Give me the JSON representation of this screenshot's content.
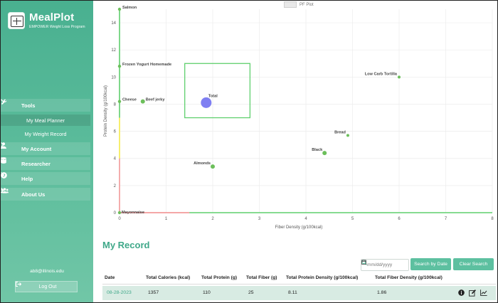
{
  "app": {
    "title": "MealPlot",
    "subtitle": "EMPOWER Weight Loss Program"
  },
  "sidebar": {
    "tools": {
      "label": "Tools",
      "icon": "wrench-icon"
    },
    "tools_items": [
      {
        "label": "My Meal Planner",
        "active": true
      },
      {
        "label": "My Weight Record",
        "active": false
      }
    ],
    "items": [
      {
        "label": "My Account",
        "icon": "user-icon"
      },
      {
        "label": "Researcher",
        "icon": "database-icon"
      },
      {
        "label": "Help",
        "icon": "question-icon"
      },
      {
        "label": "About Us",
        "icon": "users-icon"
      }
    ],
    "email": "ab8@illinois.edu",
    "logout_label": "Log Out"
  },
  "chart_data": {
    "type": "scatter",
    "title": "",
    "legend": [
      "PF Plot"
    ],
    "xlabel": "Fiber Density (g/100kcal)",
    "ylabel": "Protein Density (g/100kcal)",
    "xlim": [
      0,
      8
    ],
    "ylim": [
      0,
      15
    ],
    "xticks": [
      0,
      1,
      2,
      3,
      4,
      5,
      6,
      7,
      8
    ],
    "yticks": [
      0,
      2,
      4,
      6,
      8,
      10,
      12,
      14
    ],
    "points": [
      {
        "label": "Salmon",
        "x": 0.0,
        "y": 15.0
      },
      {
        "label": "Frozen Yogurt Homemade",
        "x": 0.0,
        "y": 10.8
      },
      {
        "label": "Cheese",
        "x": 0.0,
        "y": 8.2
      },
      {
        "label": "Beef jerky",
        "x": 0.5,
        "y": 8.2
      },
      {
        "label": "Total",
        "x": 1.86,
        "y": 8.11
      },
      {
        "label": "Low Carb Tortilla",
        "x": 6.0,
        "y": 10.0
      },
      {
        "label": "Bread",
        "x": 4.9,
        "y": 5.7
      },
      {
        "label": "Black",
        "x": 4.4,
        "y": 4.4
      },
      {
        "label": "Almonds",
        "x": 2.0,
        "y": 3.4
      },
      {
        "label": "Mayonnaise",
        "x": 0.0,
        "y": 0.0
      }
    ],
    "target_box": {
      "x0": 1.4,
      "x1": 2.8,
      "y0": 7.0,
      "y1": 11.0
    },
    "colors": {
      "point": "#6cbf5b",
      "total": "#7f7ff2",
      "box": "#5fcf6d",
      "axis_red": "#f08a8a",
      "axis_yellow": "#f5e94a"
    }
  },
  "record": {
    "title": "My Record",
    "date_placeholder": "mm/dd/yyyy",
    "search_by_date_label": "Search by Date",
    "clear_search_label": "Clear Search",
    "columns": [
      "Date",
      "Total Calories (kcal)",
      "Total Protein (g)",
      "Total Fiber (g)",
      "Total Protein Density (g/100kcal)",
      "Total Fiber Density (g/100kcal)"
    ],
    "rows": [
      {
        "date": "08-28-2023",
        "calories": "1357",
        "protein": "110",
        "fiber": "25",
        "protein_density": "8.11",
        "fiber_density": "1.86"
      }
    ]
  }
}
